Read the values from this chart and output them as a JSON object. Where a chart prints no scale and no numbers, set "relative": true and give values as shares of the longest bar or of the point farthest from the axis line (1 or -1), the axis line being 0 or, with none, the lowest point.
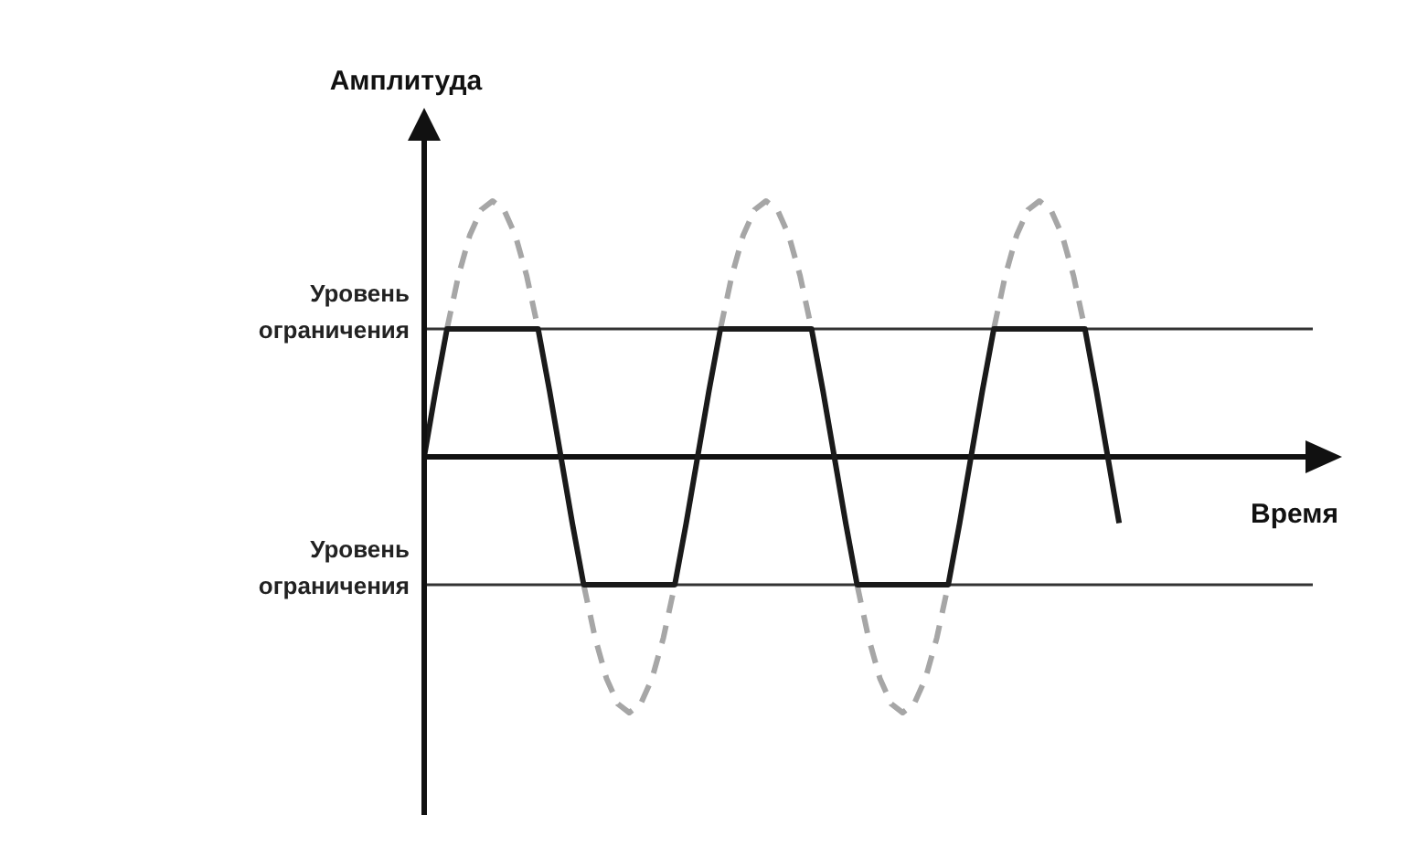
{
  "chart_data": {
    "type": "line",
    "relative": true,
    "xlabel": "Время",
    "ylabel": "Амплитуда",
    "legend": false,
    "grid": false,
    "marker": "none",
    "categories": [
      null,
      null,
      null,
      null,
      null,
      null,
      null,
      null,
      null,
      null,
      null,
      null,
      null,
      null,
      null,
      null,
      null,
      null,
      null,
      null,
      null,
      null,
      null,
      null,
      null,
      null,
      null,
      null,
      null,
      null,
      null,
      null,
      null,
      null,
      null,
      null,
      null,
      null,
      null,
      null,
      null,
      null,
      null,
      null,
      null,
      null,
      null,
      null,
      null,
      null,
      null,
      null,
      null,
      null,
      null,
      null,
      null,
      null,
      null,
      null,
      null,
      null,
      null,
      null,
      null,
      null,
      null,
      null,
      null,
      null,
      null,
      null,
      null,
      null,
      null,
      null,
      null,
      null,
      null
    ],
    "series": [
      {
        "color": "#a6a6a6",
        "line_style": "dashed",
        "values": [
          null,
          null,
          0.5,
          0.707,
          0.866,
          0.966,
          1,
          0.966,
          0.866,
          0.707,
          0.5,
          null,
          null,
          null,
          -0.5,
          -0.707,
          -0.866,
          -0.966,
          -1,
          -0.966,
          -0.866,
          -0.707,
          -0.5,
          null,
          null,
          null,
          0.5,
          0.707,
          0.866,
          0.966,
          1,
          0.966,
          0.866,
          0.707,
          0.5,
          null,
          null,
          null,
          -0.5,
          -0.707,
          -0.866,
          -0.966,
          -1,
          -0.966,
          -0.866,
          -0.707,
          -0.5,
          null,
          null,
          null,
          0.5,
          0.707,
          0.866,
          0.966,
          1,
          0.966,
          0.866,
          0.707,
          0.5,
          null,
          null,
          null,
          null,
          null,
          null,
          null,
          null,
          null,
          null,
          null,
          null,
          null,
          null,
          null,
          null,
          null,
          null,
          null,
          null
        ]
      },
      {
        "color": "#1a1a1a",
        "line_style": "solid",
        "values": [
          0,
          0.259,
          0.5,
          0.5,
          0.5,
          0.5,
          0.5,
          0.5,
          0.5,
          0.5,
          0.5,
          0.259,
          0,
          -0.259,
          -0.5,
          -0.5,
          -0.5,
          -0.5,
          -0.5,
          -0.5,
          -0.5,
          -0.5,
          -0.5,
          -0.259,
          0,
          0.259,
          0.5,
          0.5,
          0.5,
          0.5,
          0.5,
          0.5,
          0.5,
          0.5,
          0.5,
          0.259,
          0,
          -0.259,
          -0.5,
          -0.5,
          -0.5,
          -0.5,
          -0.5,
          -0.5,
          -0.5,
          -0.5,
          -0.5,
          -0.259,
          0,
          0.259,
          0.5,
          0.5,
          0.5,
          0.5,
          0.5,
          0.5,
          0.5,
          0.5,
          0.5,
          0.259,
          0,
          -0.259,
          null,
          null,
          null,
          null,
          null,
          null,
          null,
          null,
          null,
          null,
          null,
          null,
          null,
          null,
          null,
          null,
          null
        ]
      }
    ],
    "ref_lines": [
      {
        "axis": "y",
        "value": 0.5,
        "label": "Уровень ограничения",
        "color": "#333333"
      },
      {
        "axis": "y",
        "value": -0.5,
        "label": "Уровень ограничения",
        "color": "#333333"
      }
    ]
  }
}
